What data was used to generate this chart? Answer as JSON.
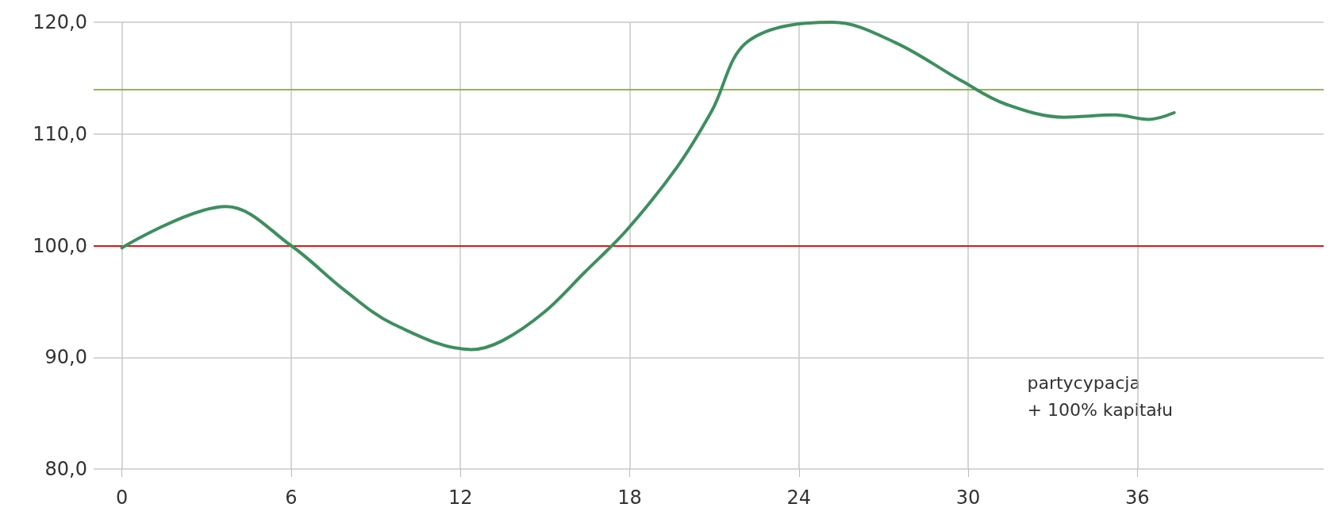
{
  "chart_data": {
    "type": "line",
    "x": [
      0,
      3.7,
      6,
      7.9,
      9.6,
      12.4,
      13.5,
      15,
      16.4,
      17.9,
      19.7,
      20.9,
      22.2,
      25.2,
      27.4,
      29.8,
      31.3,
      33.4,
      35.2,
      36.4,
      37.3
    ],
    "series": [
      {
        "color": "#3d8f5e",
        "values": [
          99.8,
          103.5,
          100,
          96,
          93,
          90.7,
          91.5,
          94.1,
          97.6,
          101.4,
          107.1,
          112,
          118.3,
          120,
          118.2,
          114.7,
          112.7,
          111.5,
          111.7,
          111.3,
          111.9
        ]
      }
    ],
    "xlim": [
      -1,
      42.6
    ],
    "xticks": [
      0,
      6,
      12,
      18,
      24,
      30,
      36
    ],
    "ylim": [
      80,
      120
    ],
    "yticks": [
      {
        "value": 80,
        "label": "80,0"
      },
      {
        "value": 90,
        "label": "90,0"
      },
      {
        "value": 100,
        "label": "100,0"
      },
      {
        "value": 110,
        "label": "110,0"
      },
      {
        "value": 120,
        "label": "120,0"
      }
    ],
    "ref_lines": [
      {
        "axis": "y",
        "value": 100,
        "color": "#d7191c"
      },
      {
        "axis": "y",
        "value": 114,
        "color": "#8fbc3a"
      }
    ],
    "annotations": [
      "partycypacja\n+ 100% kapitału"
    ],
    "grid": true,
    "marker": "none",
    "line_style": "solid"
  }
}
